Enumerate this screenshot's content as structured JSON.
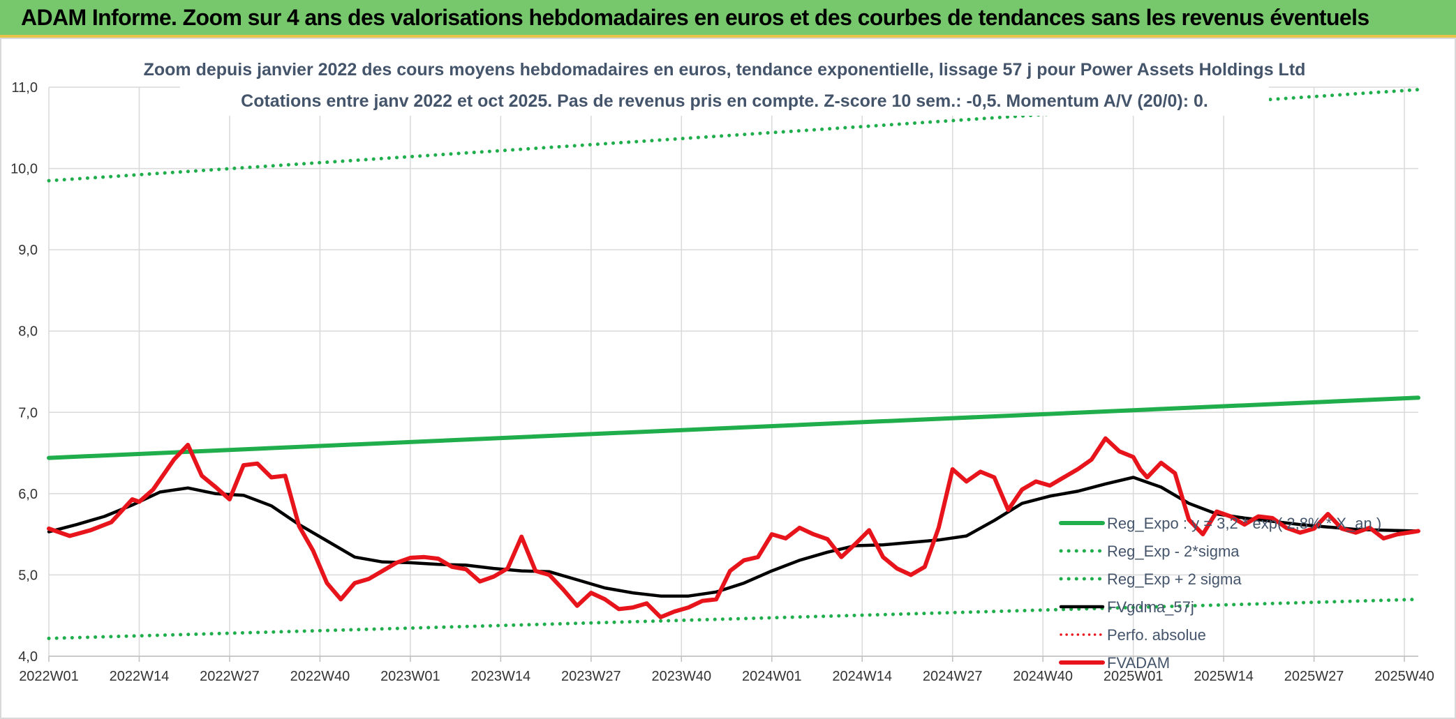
{
  "banner": {
    "title": "ADAM Informe. Zoom sur 4 ans des valorisations hebdomadaires en euros et des courbes de tendances sans les revenus éventuels"
  },
  "chart_data": {
    "type": "line",
    "title_line1": "Zoom depuis janvier 2022 des cours moyens hebdomadaires en euros, tendance exponentielle, lissage 57 j pour Power Assets Holdings Ltd",
    "title_line2": "Cotations entre janv 2022 et oct 2025. Pas de revenus pris en compte. Z-score 10 sem.: -0,5. Momentum A/V (20/0): 0.",
    "xlabel": "",
    "ylabel": "",
    "ylim": [
      4.0,
      11.0
    ],
    "y_ticks": [
      "4,0",
      "5,0",
      "6,0",
      "7,0",
      "8,0",
      "9,0",
      "10,0",
      "11,0"
    ],
    "x_ticks": [
      "2022W01",
      "2022W14",
      "2022W27",
      "2022W40",
      "2023W01",
      "2023W14",
      "2023W27",
      "2023W40",
      "2024W01",
      "2024W14",
      "2024W27",
      "2024W40",
      "2025W01",
      "2025W14",
      "2025W27",
      "2025W40"
    ],
    "week_count": 198,
    "grid": true,
    "legend_position": "right-middle",
    "colors": {
      "reg_exp": "#1fae4b",
      "reg_band": "#1fae4b",
      "fvgdma": "#000000",
      "perfo": "#e8141b",
      "fvadam": "#e8141b"
    },
    "series": [
      {
        "name": "Reg_Expo : y = 3,2 * exp( 2,8% *  X_an )",
        "style": "solid-thick",
        "x": [
          0,
          197
        ],
        "values": [
          6.44,
          7.18
        ]
      },
      {
        "name": "Reg_Exp - 2*sigma",
        "style": "dotted",
        "x": [
          0,
          197
        ],
        "values": [
          4.22,
          4.7
        ]
      },
      {
        "name": "Reg_Exp + 2 sigma",
        "style": "dotted",
        "x": [
          0,
          197
        ],
        "values": [
          9.85,
          10.97
        ]
      },
      {
        "name": "FVgdma_57j",
        "style": "solid",
        "x": [
          0,
          4,
          8,
          12,
          16,
          20,
          24,
          28,
          32,
          36,
          40,
          44,
          48,
          52,
          56,
          60,
          64,
          68,
          72,
          76,
          80,
          84,
          88,
          92,
          96,
          100,
          104,
          108,
          112,
          116,
          120,
          124,
          128,
          132,
          136,
          140,
          144,
          148,
          152,
          156,
          160,
          164,
          168,
          172,
          176,
          180,
          184,
          188,
          192,
          197
        ],
        "values": [
          5.53,
          5.62,
          5.72,
          5.86,
          6.02,
          6.07,
          6.0,
          5.98,
          5.85,
          5.62,
          5.42,
          5.22,
          5.16,
          5.15,
          5.13,
          5.12,
          5.08,
          5.05,
          5.04,
          4.94,
          4.84,
          4.78,
          4.74,
          4.74,
          4.79,
          4.9,
          5.05,
          5.18,
          5.28,
          5.36,
          5.37,
          5.4,
          5.43,
          5.48,
          5.67,
          5.88,
          5.97,
          6.03,
          6.12,
          6.2,
          6.08,
          5.88,
          5.75,
          5.7,
          5.66,
          5.62,
          5.59,
          5.56,
          5.55,
          5.54
        ]
      },
      {
        "name": "Perfo. absolue",
        "style": "dotted",
        "x": [],
        "values": []
      },
      {
        "name": "FVADAM",
        "style": "solid-thick",
        "x": [
          0,
          3,
          6,
          9,
          12,
          13,
          15,
          18,
          20,
          22,
          24,
          26,
          28,
          30,
          32,
          34,
          36,
          38,
          40,
          42,
          44,
          46,
          48,
          50,
          52,
          54,
          56,
          58,
          60,
          62,
          64,
          66,
          68,
          70,
          72,
          74,
          76,
          78,
          80,
          82,
          84,
          86,
          88,
          90,
          92,
          94,
          96,
          98,
          100,
          102,
          104,
          106,
          108,
          110,
          112,
          114,
          116,
          118,
          120,
          122,
          124,
          126,
          128,
          130,
          132,
          134,
          136,
          138,
          140,
          142,
          144,
          146,
          148,
          150,
          152,
          154,
          156,
          157,
          158,
          160,
          162,
          164,
          166,
          168,
          170,
          172,
          174,
          176,
          178,
          180,
          182,
          184,
          186,
          188,
          190,
          192,
          194,
          197
        ],
        "values": [
          5.57,
          5.48,
          5.55,
          5.65,
          5.93,
          5.9,
          6.05,
          6.42,
          6.6,
          6.22,
          6.08,
          5.93,
          6.35,
          6.37,
          6.2,
          6.22,
          5.6,
          5.3,
          4.9,
          4.7,
          4.9,
          4.95,
          5.05,
          5.15,
          5.21,
          5.22,
          5.2,
          5.1,
          5.07,
          4.92,
          4.98,
          5.08,
          5.47,
          5.05,
          5.0,
          4.82,
          4.62,
          4.78,
          4.7,
          4.58,
          4.6,
          4.65,
          4.48,
          4.55,
          4.6,
          4.68,
          4.7,
          5.05,
          5.18,
          5.22,
          5.5,
          5.45,
          5.58,
          5.5,
          5.44,
          5.22,
          5.38,
          5.55,
          5.22,
          5.08,
          5.0,
          5.1,
          5.58,
          6.3,
          6.15,
          6.27,
          6.2,
          5.8,
          6.05,
          6.15,
          6.1,
          6.2,
          6.3,
          6.42,
          6.68,
          6.52,
          6.45,
          6.3,
          6.2,
          6.38,
          6.25,
          5.68,
          5.5,
          5.78,
          5.72,
          5.62,
          5.72,
          5.7,
          5.58,
          5.52,
          5.57,
          5.75,
          5.57,
          5.52,
          5.58,
          5.45,
          5.5,
          5.54
        ]
      }
    ]
  }
}
